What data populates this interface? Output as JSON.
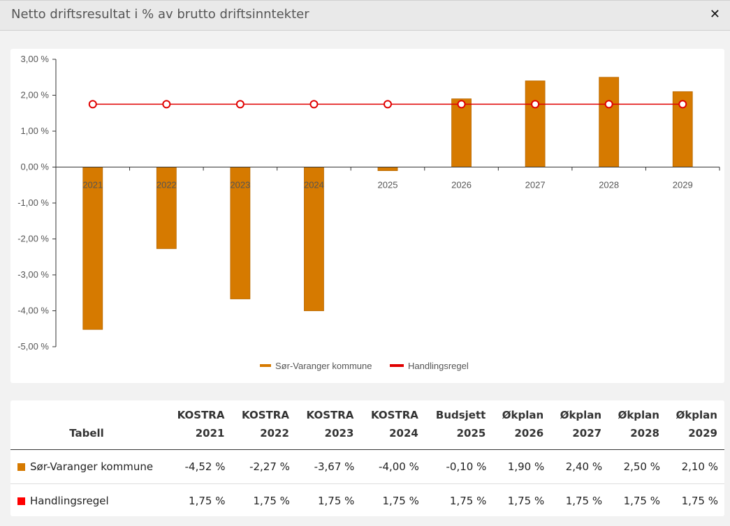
{
  "header": {
    "title": "Netto driftsresultat i % av brutto driftsinntekter",
    "close_icon": "close-icon"
  },
  "colors": {
    "bar": "#d67a00",
    "line": "#e00000"
  },
  "chart_data": {
    "type": "bar",
    "categories": [
      "2021",
      "2022",
      "2023",
      "2024",
      "2025",
      "2026",
      "2027",
      "2028",
      "2029"
    ],
    "series": [
      {
        "name": "Sør-Varanger kommune",
        "type": "bar",
        "values": [
          -4.52,
          -2.27,
          -3.67,
          -4.0,
          -0.1,
          1.9,
          2.4,
          2.5,
          2.1
        ]
      },
      {
        "name": "Handlingsregel",
        "type": "line",
        "values": [
          1.75,
          1.75,
          1.75,
          1.75,
          1.75,
          1.75,
          1.75,
          1.75,
          1.75
        ]
      }
    ],
    "ylim": [
      -5,
      3
    ],
    "yticks": [
      3,
      2,
      1,
      0,
      -1,
      -2,
      -3,
      -4,
      -5
    ],
    "ytick_labels": [
      "3,00 %",
      "2,00 %",
      "1,00 %",
      "0,00 %",
      "-1,00 %",
      "-2,00 %",
      "-3,00 %",
      "-4,00 %",
      "-5,00 %"
    ],
    "legend_position": "bottom-center"
  },
  "table": {
    "header_label": "Tabell",
    "columns": [
      [
        "KOSTRA",
        "2021"
      ],
      [
        "KOSTRA",
        "2022"
      ],
      [
        "KOSTRA",
        "2023"
      ],
      [
        "KOSTRA",
        "2024"
      ],
      [
        "Budsjett",
        "2025"
      ],
      [
        "Økplan",
        "2026"
      ],
      [
        "Økplan",
        "2027"
      ],
      [
        "Økplan",
        "2028"
      ],
      [
        "Økplan",
        "2029"
      ]
    ],
    "rows": [
      {
        "label": "Sør-Varanger kommune",
        "color": "#d67a00",
        "values": [
          "-4,52 %",
          "-2,27 %",
          "-3,67 %",
          "-4,00 %",
          "-0,10 %",
          "1,90 %",
          "2,40 %",
          "2,50 %",
          "2,10 %"
        ]
      },
      {
        "label": "Handlingsregel",
        "color": "#ff0000",
        "values": [
          "1,75 %",
          "1,75 %",
          "1,75 %",
          "1,75 %",
          "1,75 %",
          "1,75 %",
          "1,75 %",
          "1,75 %",
          "1,75 %"
        ]
      }
    ]
  }
}
